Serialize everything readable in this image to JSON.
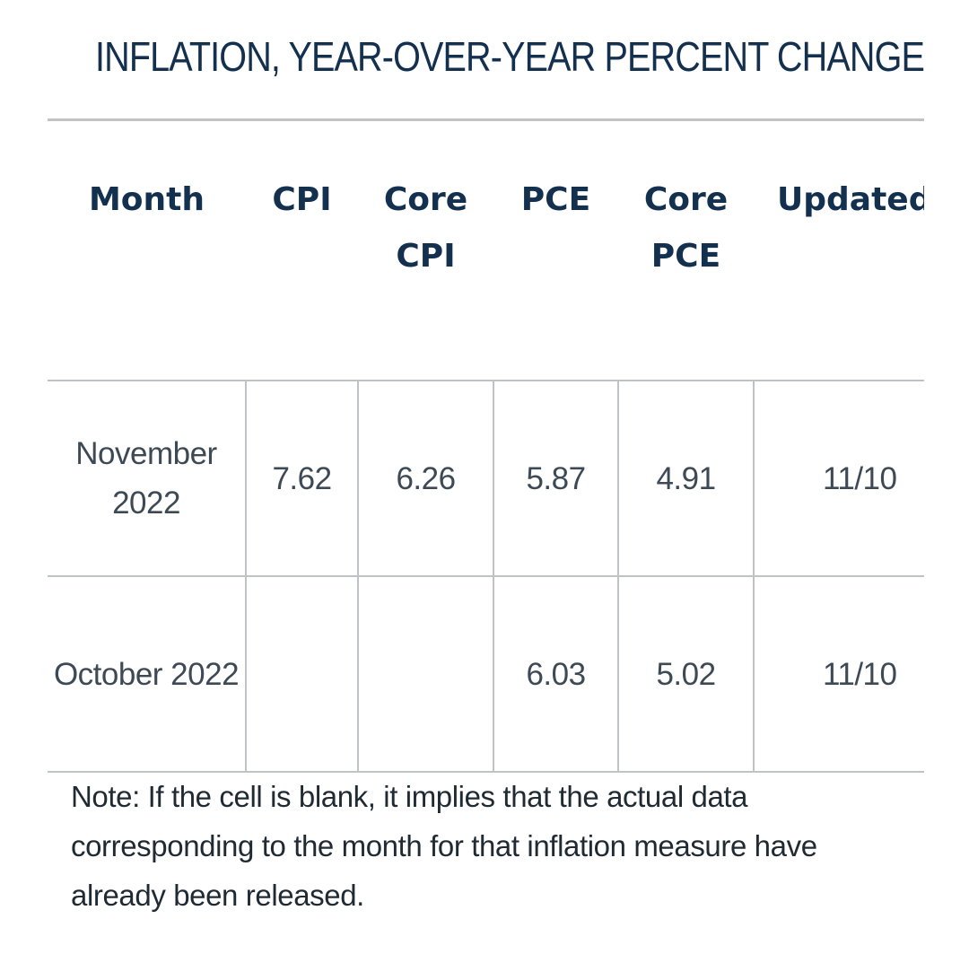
{
  "title": "INFLATION, YEAR-OVER-YEAR PERCENT CHANGE",
  "table": {
    "headers": [
      "Month",
      "CPI",
      "Core CPI",
      "PCE",
      "Core PCE",
      "Updated"
    ],
    "rows": [
      {
        "month": "November 2022",
        "cpi": "7.62",
        "core_cpi": "6.26",
        "pce": "5.87",
        "core_pce": "4.91",
        "updated": "11/10"
      },
      {
        "month": "October 2022",
        "cpi": "",
        "core_cpi": "",
        "pce": "6.03",
        "core_pce": "5.02",
        "updated": "11/10"
      }
    ]
  },
  "note": "Note: If the cell is blank, it implies that the actual data corresponding to the month for that inflation measure have already been released."
}
